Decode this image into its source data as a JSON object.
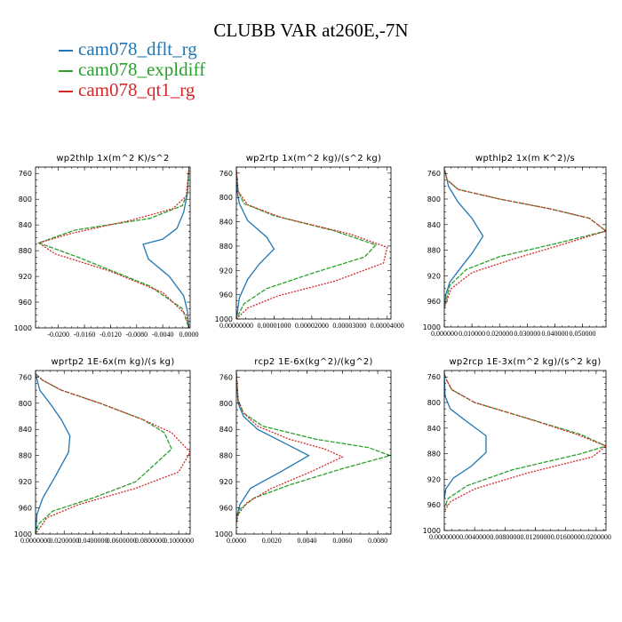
{
  "title": "CLUBB VAR at260E,-7N",
  "colors": {
    "cam078_dflt_rg": "#1f77b4",
    "cam078_expldiff": "#2ca02c",
    "cam078_qt1_rg": "#d62728"
  },
  "legend": [
    {
      "name": "cam078_dflt_rg",
      "color": "#1f77b4"
    },
    {
      "name": "cam078_expldiff",
      "color": "#2ca02c"
    },
    {
      "name": "cam078_qt1_rg",
      "color": "#d62728"
    }
  ],
  "chart_data": [
    {
      "type": "line",
      "title": "wp2thlp   1x(m^2 K)/s^2",
      "xlim": [
        -0.0235,
        0.0002
      ],
      "ylim": [
        1000,
        750
      ],
      "y_ticks": [
        760,
        800,
        840,
        880,
        920,
        960,
        1000
      ],
      "x_tick_labels": [
        "-0.0200",
        "-0.0160",
        "-0.0120",
        "-0.0080",
        "-0.0040",
        "0.0000"
      ],
      "x_tick_values": [
        -0.02,
        -0.016,
        -0.012,
        -0.008,
        -0.004,
        0.0
      ],
      "series": [
        {
          "name": "cam078_dflt_rg",
          "x": [
            0.0,
            -0.0002,
            -0.0008,
            -0.0018,
            -0.004,
            -0.007,
            -0.0062,
            -0.003,
            -0.0008,
            -0.0002,
            0.0
          ],
          "y": [
            755,
            790,
            820,
            845,
            862,
            870,
            893,
            920,
            950,
            975,
            1000
          ]
        },
        {
          "name": "cam078_expldiff",
          "x": [
            0.0,
            -0.0002,
            -0.001,
            -0.006,
            -0.0175,
            -0.023,
            -0.017,
            -0.006,
            -0.001,
            0.0
          ],
          "y": [
            755,
            790,
            810,
            830,
            848,
            868,
            890,
            935,
            970,
            1000
          ]
        },
        {
          "name": "cam078_qt1_rg",
          "x": [
            0.0,
            -0.0004,
            -0.0025,
            -0.009,
            -0.018,
            -0.023,
            -0.0205,
            -0.012,
            -0.004,
            -0.0004,
            0.0
          ],
          "y": [
            755,
            795,
            815,
            833,
            853,
            868,
            885,
            912,
            945,
            980,
            1000
          ]
        }
      ]
    },
    {
      "type": "line",
      "title": "wp2rtp   1x(m^2 kg)/(s^2 kg)",
      "xlim": [
        0,
        4.1e-05
      ],
      "ylim": [
        1000,
        750
      ],
      "y_ticks": [
        760,
        800,
        840,
        880,
        920,
        960,
        1000
      ],
      "x_tick_labels": [
        "0.00000000",
        "0.00001000",
        "0.00002000",
        "0.00003000",
        "0.00004000"
      ],
      "x_tick_values": [
        0,
        1e-05,
        2e-05,
        3e-05,
        4e-05
      ],
      "series": [
        {
          "name": "cam078_dflt_rg",
          "x": [
            0,
            2e-07,
            8e-07,
            3e-06,
            8e-06,
            1e-05,
            6e-06,
            3e-06,
            8e-07,
            0
          ],
          "y": [
            755,
            790,
            810,
            838,
            865,
            885,
            910,
            935,
            965,
            1000
          ]
        },
        {
          "name": "cam078_expldiff",
          "x": [
            0,
            5e-07,
            2e-06,
            1e-05,
            2.6e-05,
            3.7e-05,
            3.4e-05,
            2e-05,
            8e-06,
            2e-06,
            0
          ],
          "y": [
            755,
            790,
            810,
            830,
            855,
            878,
            898,
            925,
            950,
            975,
            1000
          ]
        },
        {
          "name": "cam078_qt1_rg",
          "x": [
            0,
            5e-07,
            3e-06,
            1.2e-05,
            3e-05,
            4e-05,
            3.9e-05,
            2.6e-05,
            1.1e-05,
            3e-06,
            0
          ],
          "y": [
            755,
            790,
            812,
            833,
            860,
            882,
            908,
            938,
            962,
            982,
            1000
          ]
        }
      ]
    },
    {
      "type": "line",
      "title": "wpthlp2   1x(m K^2)/s",
      "xlim": [
        0,
        0.0585
      ],
      "ylim": [
        1000,
        750
      ],
      "y_ticks": [
        760,
        800,
        840,
        880,
        920,
        960,
        1000
      ],
      "x_tick_labels": [
        "0.000000",
        "0.010000",
        "0.020000",
        "0.030000",
        "0.040000",
        "0.050000"
      ],
      "x_tick_values": [
        0,
        0.01,
        0.02,
        0.03,
        0.04,
        0.05
      ],
      "series": [
        {
          "name": "cam078_dflt_rg",
          "x": [
            0.0002,
            0.0015,
            0.005,
            0.01,
            0.014,
            0.01,
            0.0055,
            0.002,
            0.0005,
            0
          ],
          "y": [
            755,
            780,
            805,
            830,
            858,
            885,
            910,
            930,
            950,
            970
          ]
        },
        {
          "name": "cam078_expldiff",
          "x": [
            0.0002,
            0.001,
            0.005,
            0.02,
            0.038,
            0.0525,
            0.0585,
            0.04,
            0.02,
            0.008,
            0.002,
            0
          ],
          "y": [
            755,
            770,
            785,
            800,
            815,
            830,
            850,
            870,
            890,
            910,
            935,
            970
          ]
        },
        {
          "name": "cam078_qt1_rg",
          "x": [
            0.0002,
            0.001,
            0.005,
            0.02,
            0.038,
            0.0525,
            0.0585,
            0.042,
            0.024,
            0.01,
            0.0025,
            0
          ],
          "y": [
            755,
            770,
            785,
            800,
            815,
            830,
            850,
            872,
            895,
            915,
            940,
            970
          ]
        }
      ]
    },
    {
      "type": "line",
      "title": "wprtp2   1E-6x(m kg)/(s kg)",
      "xlim": [
        0,
        0.000108
      ],
      "ylim": [
        1000,
        750
      ],
      "y_ticks": [
        760,
        800,
        840,
        880,
        920,
        960,
        1000
      ],
      "x_tick_labels": [
        "0.0000000",
        "0.0200000",
        "0.0400000",
        "0.0600000",
        "0.0800000",
        "0.1000000"
      ],
      "x_tick_values": [
        0,
        2e-05,
        4e-05,
        6e-05,
        8e-05,
        0.0001
      ],
      "series": [
        {
          "name": "cam078_dflt_rg",
          "x": [
            0,
            3e-06,
            1e-05,
            1.8e-05,
            2.4e-05,
            2.3e-05,
            1.3e-05,
            5e-06,
            1e-06,
            0
          ],
          "y": [
            755,
            780,
            800,
            825,
            850,
            875,
            915,
            945,
            970,
            1000
          ]
        },
        {
          "name": "cam078_expldiff",
          "x": [
            0,
            5e-06,
            1.8e-05,
            4.5e-05,
            7.5e-05,
            9e-05,
            9.5e-05,
            7e-05,
            4e-05,
            1.2e-05,
            2e-06,
            0
          ],
          "y": [
            755,
            765,
            780,
            800,
            825,
            845,
            870,
            920,
            945,
            965,
            985,
            1000
          ]
        },
        {
          "name": "cam078_qt1_rg",
          "x": [
            0,
            5e-06,
            1.8e-05,
            4.5e-05,
            7.5e-05,
            9.5e-05,
            0.000108,
            0.0001,
            7e-05,
            3e-05,
            8e-06,
            0
          ],
          "y": [
            755,
            765,
            780,
            800,
            825,
            845,
            875,
            905,
            930,
            955,
            975,
            1000
          ]
        }
      ]
    },
    {
      "type": "line",
      "title": "rcp2   1E-6x(kg^2)/(kg^2)",
      "xlim": [
        0,
        0.00875
      ],
      "ylim": [
        1000,
        750
      ],
      "y_ticks": [
        760,
        800,
        840,
        880,
        920,
        960,
        1000
      ],
      "x_tick_labels": [
        "0.0000",
        "0.0020",
        "0.0040",
        "0.0060",
        "0.0080"
      ],
      "x_tick_values": [
        0,
        0.002,
        0.004,
        0.006,
        0.008
      ],
      "series": [
        {
          "name": "cam078_dflt_rg",
          "x": [
            0,
            0.0001,
            0.0004,
            0.0012,
            0.0028,
            0.0041,
            0.0025,
            0.0008,
            0.0002,
            0
          ],
          "y": [
            755,
            800,
            820,
            840,
            862,
            880,
            905,
            930,
            955,
            975
          ]
        },
        {
          "name": "cam078_expldiff",
          "x": [
            0,
            0.0001,
            0.0004,
            0.0015,
            0.0045,
            0.0075,
            0.0087,
            0.006,
            0.003,
            0.001,
            0.0002,
            0
          ],
          "y": [
            755,
            795,
            815,
            835,
            855,
            868,
            880,
            900,
            925,
            945,
            962,
            980
          ]
        },
        {
          "name": "cam078_qt1_rg",
          "x": [
            0,
            0.0001,
            0.0004,
            0.0012,
            0.003,
            0.005,
            0.006,
            0.0042,
            0.002,
            0.0006,
            0.0001,
            0
          ],
          "y": [
            755,
            795,
            815,
            835,
            855,
            870,
            882,
            905,
            930,
            952,
            970,
            985
          ]
        }
      ]
    },
    {
      "type": "line",
      "title": "wp2rcp   1E-3x(m^2 kg)/(s^2 kg)",
      "xlim": [
        0,
        0.0213
      ],
      "ylim": [
        1000,
        750
      ],
      "y_ticks": [
        760,
        800,
        840,
        880,
        920,
        960,
        1000
      ],
      "x_tick_labels": [
        "0.0000000",
        "0.0040000",
        "0.0080000",
        "0.0120000",
        "0.0160000",
        "0.0200000"
      ],
      "x_tick_values": [
        0,
        0.004,
        0.008,
        0.012,
        0.016,
        0.02
      ],
      "series": [
        {
          "name": "cam078_dflt_rg",
          "x": [
            0,
            0.0001,
            0.0008,
            0.003,
            0.0055,
            0.0055,
            0.0035,
            0.0012,
            0.0002,
            0
          ],
          "y": [
            755,
            790,
            810,
            830,
            852,
            878,
            900,
            918,
            935,
            950
          ]
        },
        {
          "name": "cam078_expldiff",
          "x": [
            0,
            0.0003,
            0.001,
            0.004,
            0.011,
            0.018,
            0.0213,
            0.018,
            0.009,
            0.003,
            0.0005,
            0
          ],
          "y": [
            755,
            765,
            780,
            800,
            825,
            850,
            868,
            880,
            905,
            930,
            950,
            965
          ]
        },
        {
          "name": "cam078_qt1_rg",
          "x": [
            0,
            0.0003,
            0.001,
            0.004,
            0.011,
            0.0175,
            0.0213,
            0.0195,
            0.011,
            0.004,
            0.0008,
            0
          ],
          "y": [
            755,
            765,
            780,
            800,
            825,
            850,
            868,
            885,
            910,
            935,
            955,
            970
          ]
        }
      ]
    }
  ]
}
